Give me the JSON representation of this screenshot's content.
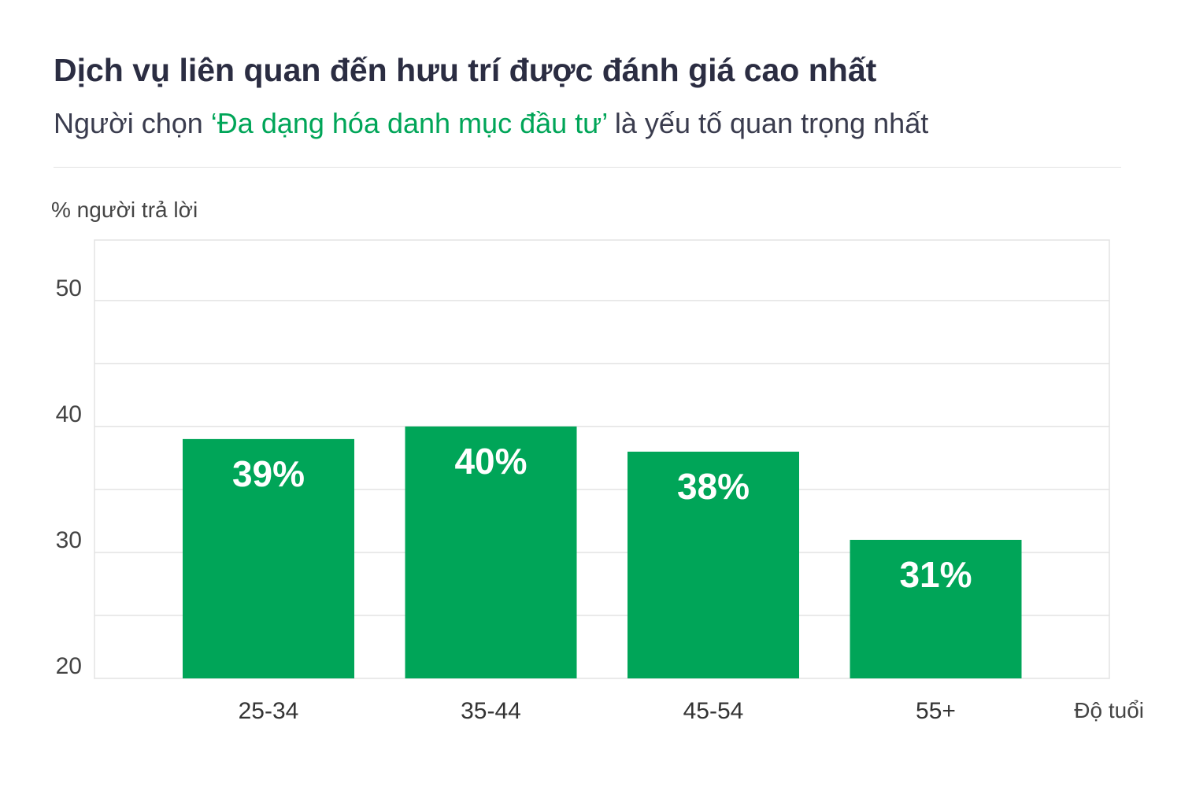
{
  "header": {
    "title": "Dịch vụ liên quan đến hưu trí được đánh giá cao nhất",
    "subtitle_prefix": "Người chọn ",
    "subtitle_highlight": "‘Đa dạng hóa danh mục đầu tư’",
    "subtitle_suffix": " là yếu tố quan trọng nhất"
  },
  "colors": {
    "bar": "#00a558",
    "highlight": "#00a558",
    "grid": "#e3e3e3",
    "text": "#333333"
  },
  "chart_data": {
    "type": "bar",
    "title": "Dịch vụ liên quan đến hưu trí được đánh giá cao nhất",
    "subtitle": "Người chọn ‘Đa dạng hóa danh mục đầu tư’ là yếu tố quan trọng nhất",
    "ylabel": "% người trả lời",
    "xlabel": "Độ tuổi",
    "categories": [
      "25-34",
      "35-44",
      "45-54",
      "55+"
    ],
    "values": [
      39,
      40,
      38,
      31
    ],
    "data_labels": [
      "39%",
      "40%",
      "38%",
      "31%"
    ],
    "ylim": [
      20,
      54.8
    ],
    "yticks": [
      20,
      30,
      40,
      50
    ],
    "yticks_labels": [
      "20",
      "30",
      "40",
      "50"
    ],
    "grid": true
  }
}
